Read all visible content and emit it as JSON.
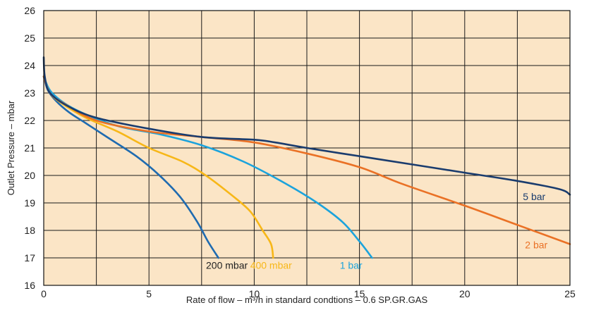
{
  "colors": {
    "background": "#fbe5c6",
    "grid": "#1a1a1a",
    "axis": "#111111",
    "text": "#222222"
  },
  "chart_data": {
    "type": "line",
    "title": "",
    "xlabel": "Rate of flow – m³/h in standard condtions – 0.6 SP.GR.GAS",
    "ylabel": "Outlet Pressure – mbar",
    "xlim": [
      0,
      25
    ],
    "ylim": [
      16,
      26
    ],
    "x_ticks": [
      0,
      5,
      10,
      15,
      20,
      25
    ],
    "y_ticks": [
      16,
      17,
      18,
      19,
      20,
      21,
      22,
      23,
      24,
      25,
      26
    ],
    "x_grid_lines": [
      0,
      2.5,
      5,
      7.5,
      10,
      12.5,
      15,
      17.5,
      20,
      22.5,
      25
    ],
    "grid": true,
    "series": [
      {
        "name": "200 mbar",
        "color": "#1f6bb0",
        "label_color": "#222222",
        "label_at": [
          8.7,
          16.6
        ],
        "points": [
          [
            0.0,
            23.6
          ],
          [
            0.2,
            23.1
          ],
          [
            0.6,
            22.7
          ],
          [
            1.2,
            22.3
          ],
          [
            2.0,
            21.9
          ],
          [
            3.0,
            21.4
          ],
          [
            4.4,
            20.7
          ],
          [
            5.5,
            20.0
          ],
          [
            6.5,
            19.2
          ],
          [
            7.3,
            18.3
          ],
          [
            7.8,
            17.6
          ],
          [
            8.3,
            17.0
          ]
        ]
      },
      {
        "name": "400 mbar",
        "color": "#f7b718",
        "label_color": "#f7b718",
        "label_at": [
          10.8,
          16.6
        ],
        "points": [
          [
            0.0,
            23.6
          ],
          [
            0.3,
            23.0
          ],
          [
            0.9,
            22.6
          ],
          [
            2.0,
            22.1
          ],
          [
            3.5,
            21.6
          ],
          [
            5.0,
            21.0
          ],
          [
            6.6,
            20.5
          ],
          [
            7.7,
            20.0
          ],
          [
            8.9,
            19.3
          ],
          [
            9.8,
            18.7
          ],
          [
            10.4,
            18.0
          ],
          [
            10.8,
            17.5
          ],
          [
            10.9,
            17.0
          ]
        ]
      },
      {
        "name": "1 bar",
        "color": "#1ba3dc",
        "label_color": "#1ba3dc",
        "label_at": [
          14.6,
          16.6
        ],
        "points": [
          [
            0.0,
            23.6
          ],
          [
            0.4,
            23.0
          ],
          [
            1.5,
            22.4
          ],
          [
            3.5,
            21.8
          ],
          [
            5.5,
            21.5
          ],
          [
            7.5,
            21.1
          ],
          [
            9.5,
            20.5
          ],
          [
            11.5,
            19.7
          ],
          [
            13.0,
            19.0
          ],
          [
            14.2,
            18.3
          ],
          [
            15.0,
            17.6
          ],
          [
            15.6,
            17.0
          ]
        ]
      },
      {
        "name": "2 bar",
        "color": "#ea7125",
        "label_color": "#ea7125",
        "label_at": [
          23.4,
          17.35
        ],
        "points": [
          [
            0.0,
            23.6
          ],
          [
            0.3,
            23.0
          ],
          [
            1.0,
            22.6
          ],
          [
            2.5,
            22.0
          ],
          [
            5.0,
            21.6
          ],
          [
            7.5,
            21.4
          ],
          [
            10.0,
            21.2
          ],
          [
            12.5,
            20.8
          ],
          [
            15.0,
            20.3
          ],
          [
            17.0,
            19.7
          ],
          [
            20.0,
            18.9
          ],
          [
            22.5,
            18.2
          ],
          [
            25.0,
            17.5
          ]
        ]
      },
      {
        "name": "5 bar",
        "color": "#1a3c6e",
        "label_color": "#1a3c6e",
        "label_at": [
          23.3,
          19.1
        ],
        "points": [
          [
            0.0,
            24.3
          ],
          [
            0.05,
            23.6
          ],
          [
            0.3,
            23.0
          ],
          [
            1.2,
            22.5
          ],
          [
            2.5,
            22.1
          ],
          [
            5.0,
            21.7
          ],
          [
            7.5,
            21.4
          ],
          [
            10.0,
            21.3
          ],
          [
            11.0,
            21.2
          ],
          [
            12.5,
            21.0
          ],
          [
            15.0,
            20.7
          ],
          [
            17.5,
            20.4
          ],
          [
            20.0,
            20.1
          ],
          [
            22.5,
            19.8
          ],
          [
            24.5,
            19.5
          ],
          [
            25.0,
            19.3
          ]
        ]
      }
    ]
  }
}
